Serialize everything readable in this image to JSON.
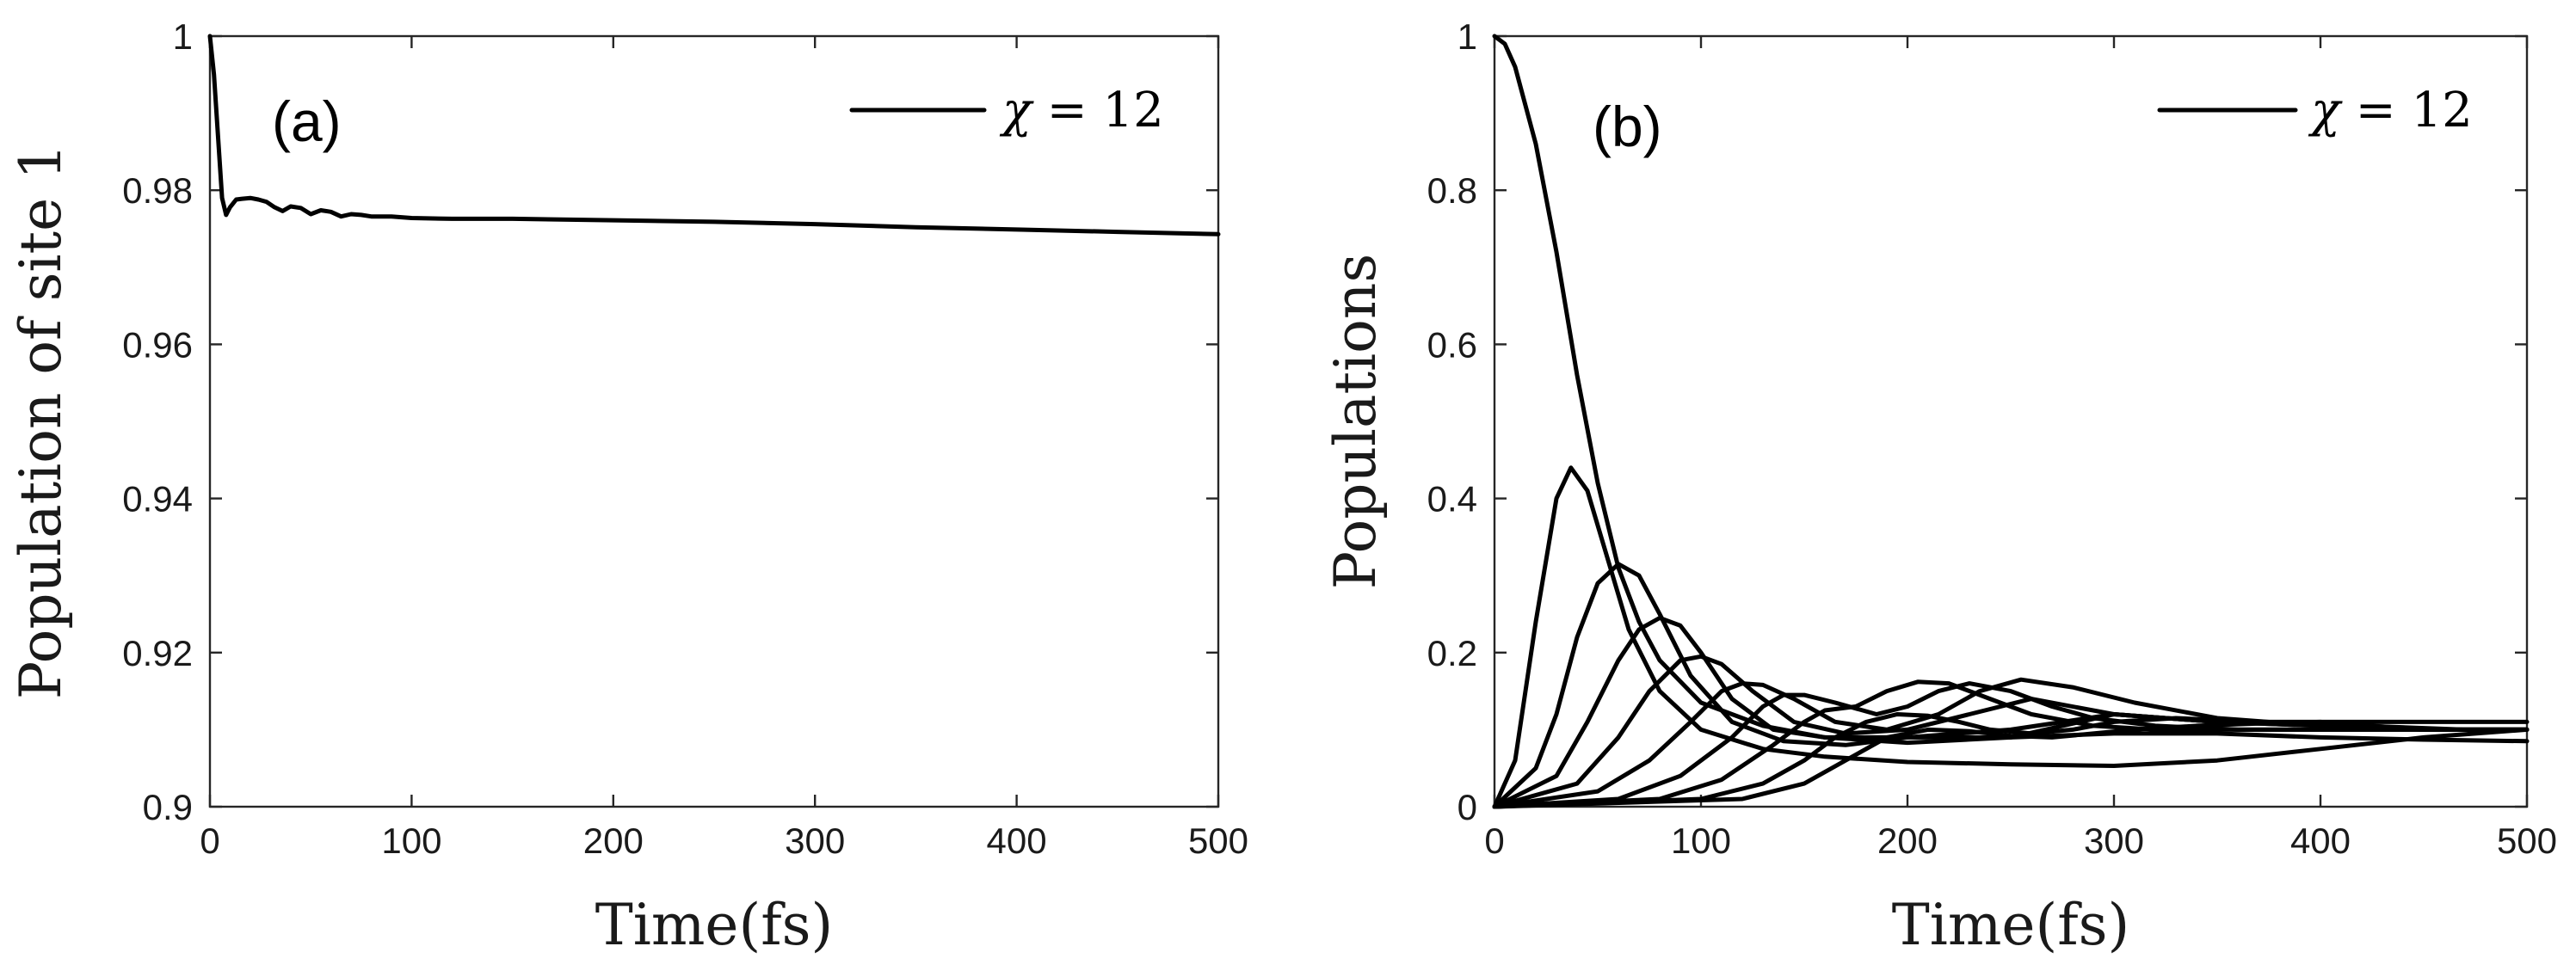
{
  "chart_data": [
    {
      "type": "line",
      "panel_label": "(a)",
      "xlabel": "Time(fs)",
      "ylabel": "Population of site 1",
      "xlim": [
        0,
        500
      ],
      "ylim": [
        0.9,
        1.0
      ],
      "xticks": [
        "0",
        "100",
        "200",
        "300",
        "400",
        "500"
      ],
      "yticks": [
        "0.9",
        "0.92",
        "0.94",
        "0.96",
        "0.98",
        "1"
      ],
      "legend": {
        "label_symbol": "χ",
        "label_rest": " = 12",
        "position": "top-right"
      },
      "series": [
        {
          "x": [
            0,
            2,
            4,
            6,
            8,
            10,
            13,
            16,
            20,
            24,
            28,
            32,
            36,
            40,
            45,
            50,
            55,
            60,
            65,
            70,
            75,
            80,
            90,
            100,
            120,
            150,
            200,
            250,
            300,
            350,
            400,
            450,
            500
          ],
          "y": [
            1.0,
            0.995,
            0.987,
            0.979,
            0.9768,
            0.9778,
            0.9788,
            0.9789,
            0.979,
            0.9788,
            0.9785,
            0.9778,
            0.9773,
            0.9779,
            0.9777,
            0.9769,
            0.9774,
            0.9772,
            0.9766,
            0.9769,
            0.9768,
            0.9766,
            0.9766,
            0.9764,
            0.9763,
            0.9763,
            0.9761,
            0.9759,
            0.9756,
            0.9752,
            0.9749,
            0.9746,
            0.9743
          ]
        }
      ]
    },
    {
      "type": "line",
      "panel_label": "(b)",
      "xlabel": "Time(fs)",
      "ylabel": "Populations",
      "xlim": [
        0,
        500
      ],
      "ylim": [
        0,
        1
      ],
      "xticks": [
        "0",
        "100",
        "200",
        "300",
        "400",
        "500"
      ],
      "yticks": [
        "0",
        "0.2",
        "0.4",
        "0.6",
        "0.8",
        "1"
      ],
      "legend": {
        "label_symbol": "χ",
        "label_rest": " = 12",
        "position": "top-right"
      },
      "series": [
        {
          "x": [
            0,
            5,
            10,
            20,
            30,
            40,
            50,
            60,
            70,
            80,
            100,
            130,
            160,
            200,
            250,
            300,
            350,
            400,
            450,
            500
          ],
          "y": [
            1.0,
            0.99,
            0.96,
            0.86,
            0.72,
            0.56,
            0.42,
            0.31,
            0.24,
            0.19,
            0.135,
            0.105,
            0.09,
            0.083,
            0.09,
            0.095,
            0.095,
            0.09,
            0.087,
            0.085
          ]
        },
        {
          "x": [
            0,
            10,
            20,
            30,
            37,
            45,
            55,
            65,
            80,
            100,
            130,
            160,
            200,
            250,
            300,
            350,
            400,
            450,
            500
          ],
          "y": [
            0.0,
            0.06,
            0.24,
            0.4,
            0.44,
            0.41,
            0.32,
            0.23,
            0.15,
            0.1,
            0.075,
            0.065,
            0.058,
            0.055,
            0.053,
            0.06,
            0.075,
            0.09,
            0.1
          ]
        },
        {
          "x": [
            0,
            20,
            30,
            40,
            50,
            60,
            70,
            80,
            95,
            115,
            140,
            170,
            200,
            250,
            300,
            350,
            400,
            450,
            500
          ],
          "y": [
            0.0,
            0.05,
            0.12,
            0.22,
            0.29,
            0.315,
            0.3,
            0.25,
            0.17,
            0.11,
            0.085,
            0.08,
            0.09,
            0.09,
            0.12,
            0.11,
            0.11,
            0.1,
            0.1
          ]
        },
        {
          "x": [
            0,
            30,
            45,
            60,
            70,
            80,
            90,
            100,
            115,
            135,
            160,
            200,
            250,
            300,
            350,
            400,
            450,
            500
          ],
          "y": [
            0.0,
            0.04,
            0.11,
            0.19,
            0.23,
            0.245,
            0.235,
            0.2,
            0.14,
            0.1,
            0.09,
            0.09,
            0.1,
            0.12,
            0.11,
            0.105,
            0.1,
            0.1
          ]
        },
        {
          "x": [
            0,
            40,
            60,
            75,
            90,
            100,
            110,
            125,
            145,
            170,
            200,
            230,
            260,
            300,
            350,
            400,
            450,
            500
          ],
          "y": [
            0.0,
            0.03,
            0.09,
            0.15,
            0.19,
            0.195,
            0.185,
            0.15,
            0.11,
            0.095,
            0.1,
            0.12,
            0.14,
            0.12,
            0.11,
            0.105,
            0.1,
            0.1
          ]
        },
        {
          "x": [
            0,
            50,
            75,
            95,
            110,
            120,
            130,
            145,
            165,
            190,
            215,
            235,
            255,
            280,
            310,
            350,
            400,
            450,
            500
          ],
          "y": [
            0.0,
            0.02,
            0.06,
            0.11,
            0.15,
            0.16,
            0.158,
            0.14,
            0.11,
            0.1,
            0.12,
            0.15,
            0.165,
            0.155,
            0.135,
            0.115,
            0.105,
            0.1,
            0.1
          ]
        },
        {
          "x": [
            0,
            60,
            90,
            115,
            130,
            140,
            150,
            165,
            185,
            200,
            215,
            230,
            250,
            270,
            290,
            320,
            360,
            400,
            450,
            500
          ],
          "y": [
            0.0,
            0.01,
            0.04,
            0.09,
            0.13,
            0.145,
            0.145,
            0.135,
            0.12,
            0.13,
            0.15,
            0.16,
            0.15,
            0.13,
            0.115,
            0.105,
            0.1,
            0.1,
            0.1,
            0.1
          ]
        },
        {
          "x": [
            0,
            80,
            110,
            135,
            150,
            160,
            175,
            190,
            205,
            220,
            240,
            260,
            290,
            320,
            360,
            400,
            450,
            500
          ],
          "y": [
            0.0,
            0.01,
            0.035,
            0.08,
            0.11,
            0.125,
            0.13,
            0.15,
            0.162,
            0.16,
            0.14,
            0.12,
            0.105,
            0.1,
            0.1,
            0.1,
            0.1,
            0.1
          ]
        },
        {
          "x": [
            0,
            100,
            130,
            150,
            165,
            180,
            195,
            210,
            225,
            240,
            260,
            280,
            300,
            330,
            370,
            420,
            470,
            500
          ],
          "y": [
            0.0,
            0.01,
            0.03,
            0.06,
            0.09,
            0.11,
            0.12,
            0.118,
            0.11,
            0.1,
            0.095,
            0.1,
            0.11,
            0.115,
            0.11,
            0.105,
            0.1,
            0.1
          ]
        },
        {
          "x": [
            0,
            120,
            150,
            170,
            190,
            210,
            230,
            250,
            270,
            290,
            310,
            340,
            370,
            400,
            450,
            500
          ],
          "y": [
            0.0,
            0.01,
            0.03,
            0.06,
            0.09,
            0.1,
            0.098,
            0.092,
            0.09,
            0.095,
            0.1,
            0.105,
            0.108,
            0.11,
            0.11,
            0.11
          ]
        }
      ]
    }
  ]
}
